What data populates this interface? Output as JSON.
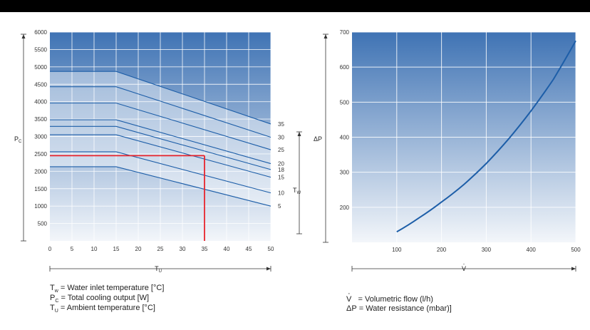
{
  "colors": {
    "plot_top": "#3f73b4",
    "plot_bottom": "#f3f6fa",
    "curve": "#1d5ea8",
    "highlight": "#e8242c"
  },
  "chart_data": [
    {
      "type": "line",
      "xlabel": "T",
      "xlabel_sub": "U",
      "ylabel": "P",
      "ylabel_sub": "C",
      "xlim": [
        0,
        50
      ],
      "ylim": [
        0,
        6000
      ],
      "x_ticks": [
        "0",
        "5",
        "10",
        "15",
        "20",
        "25",
        "30",
        "35",
        "40",
        "45",
        "50"
      ],
      "y_ticks": [
        "500",
        "1000",
        "1500",
        "2000",
        "2500",
        "3000",
        "3500",
        "4000",
        "4500",
        "5000",
        "5500",
        "6000"
      ],
      "grid": true,
      "series": [
        {
          "name": "35",
          "points": [
            [
              0,
              4870
            ],
            [
              15,
              4870
            ],
            [
              50,
              3360
            ]
          ]
        },
        {
          "name": "30",
          "points": [
            [
              0,
              4430
            ],
            [
              15,
              4430
            ],
            [
              50,
              2980
            ]
          ]
        },
        {
          "name": "25",
          "points": [
            [
              0,
              3960
            ],
            [
              15,
              3960
            ],
            [
              50,
              2620
            ]
          ]
        },
        {
          "name": "20",
          "points": [
            [
              0,
              3480
            ],
            [
              15,
              3480
            ],
            [
              50,
              2220
            ]
          ]
        },
        {
          "name": "18",
          "points": [
            [
              0,
              3290
            ],
            [
              15,
              3290
            ],
            [
              50,
              2050
            ]
          ]
        },
        {
          "name": "15",
          "points": [
            [
              0,
              3050
            ],
            [
              15,
              3050
            ],
            [
              50,
              1830
            ]
          ]
        },
        {
          "name": "10",
          "points": [
            [
              0,
              2560
            ],
            [
              15,
              2560
            ],
            [
              50,
              1380
            ]
          ]
        },
        {
          "name": "5",
          "points": [
            [
              0,
              2130
            ],
            [
              15,
              2130
            ],
            [
              50,
              1000
            ]
          ]
        }
      ],
      "series_group_label": "T",
      "series_group_label_sub": "W",
      "highlight": {
        "x": 35,
        "y": 2450
      }
    },
    {
      "type": "line",
      "xlabel": "V",
      "ylabel": "ΔP",
      "xlim": [
        0,
        500
      ],
      "ylim": [
        100,
        700
      ],
      "x_ticks": [
        "100",
        "200",
        "300",
        "400",
        "500"
      ],
      "y_ticks": [
        "200",
        "300",
        "400",
        "500",
        "600",
        "700"
      ],
      "grid": true,
      "series": [
        {
          "points": [
            [
              100,
              130
            ],
            [
              150,
              170
            ],
            [
              200,
              215
            ],
            [
              250,
              265
            ],
            [
              300,
              325
            ],
            [
              350,
              395
            ],
            [
              400,
              475
            ],
            [
              450,
              565
            ],
            [
              500,
              675
            ]
          ]
        }
      ]
    }
  ],
  "legend_left": [
    {
      "sym": "T",
      "sub": "w",
      "text": "= Water inlet temperature [°C]"
    },
    {
      "sym": "P",
      "sub": "C",
      "text": "= Total cooling output [W]"
    },
    {
      "sym": "T",
      "sub": "U",
      "text": "= Ambient temperature [°C]"
    }
  ],
  "legend_right": [
    {
      "sym": "V",
      "text": "= Volumetric flow (l/h)"
    },
    {
      "sym": "ΔP",
      "text": "= Water resistance (mbar)]"
    }
  ]
}
